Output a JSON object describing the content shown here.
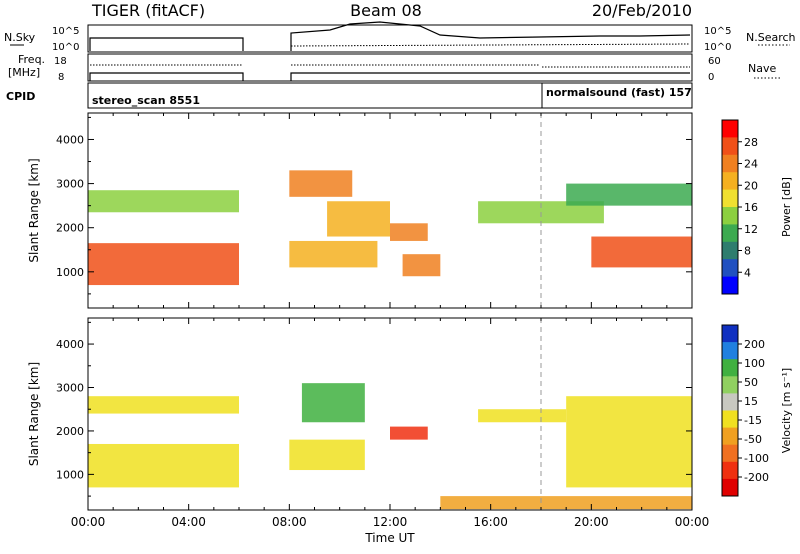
{
  "header": {
    "title": "TIGER (fitACF)",
    "beam": "Beam 08",
    "date": "20/Feb/2010"
  },
  "panels": {
    "nsky_label": "N.Sky",
    "nsearch_label": "N.Search",
    "nsky_ticks": [
      "10^5",
      "10^0"
    ],
    "freq_label_line1": "Freq.",
    "freq_label_line2": "[MHz]",
    "freq_ticks": [
      "18",
      "8"
    ],
    "nave_label": "Nave",
    "nave_ticks": [
      "60",
      "0"
    ],
    "cpid_label": "CPID",
    "cpid_1": "stereo_scan 8551",
    "cpid_2": "normalsound (fast) 157"
  },
  "chart_data": [
    {
      "type": "heatmap",
      "name": "power",
      "ylabel": "Slant Range [km]",
      "xlabel": "",
      "xlim": [
        0,
        24
      ],
      "ylim": [
        180,
        4600
      ],
      "yticks": [
        1000,
        2000,
        3000,
        4000
      ],
      "colorbar": {
        "label": "Power [dB]",
        "ticks": [
          "28",
          "24",
          "20",
          "16",
          "12",
          "8",
          "4"
        ],
        "colors": [
          "#0000ff",
          "#2050c0",
          "#2e7d6e",
          "#3caa50",
          "#8cd040",
          "#f0e030",
          "#f5b020",
          "#f08020",
          "#f05018",
          "#ff0000"
        ]
      },
      "bands": [
        {
          "t0": 0.0,
          "t1": 6.0,
          "r0": 700,
          "r1": 1650,
          "level": 0.85
        },
        {
          "t0": 0.0,
          "t1": 6.0,
          "r0": 2350,
          "r1": 2850,
          "level": 0.4
        },
        {
          "t0": 8.0,
          "t1": 11.5,
          "r0": 1100,
          "r1": 1700,
          "level": 0.7
        },
        {
          "t0": 8.0,
          "t1": 10.5,
          "r0": 2700,
          "r1": 3300,
          "level": 0.75
        },
        {
          "t0": 9.5,
          "t1": 12.0,
          "r0": 1800,
          "r1": 2600,
          "level": 0.7
        },
        {
          "t0": 12.0,
          "t1": 13.5,
          "r0": 1700,
          "r1": 2100,
          "level": 0.8
        },
        {
          "t0": 12.5,
          "t1": 14.0,
          "r0": 900,
          "r1": 1400,
          "level": 0.8
        },
        {
          "t0": 15.5,
          "t1": 20.5,
          "r0": 2100,
          "r1": 2600,
          "level": 0.45
        },
        {
          "t0": 19.0,
          "t1": 24.0,
          "r0": 2500,
          "r1": 3000,
          "level": 0.35
        },
        {
          "t0": 20.0,
          "t1": 24.0,
          "r0": 1100,
          "r1": 1800,
          "level": 0.85
        }
      ]
    },
    {
      "type": "heatmap",
      "name": "velocity",
      "ylabel": "Slant Range [km]",
      "xlabel": "Time UT",
      "xlim": [
        0,
        24
      ],
      "ylim": [
        180,
        4600
      ],
      "xticks": [
        "00:00",
        "04:00",
        "08:00",
        "12:00",
        "16:00",
        "20:00",
        "00:00"
      ],
      "yticks": [
        1000,
        2000,
        3000,
        4000
      ],
      "colorbar": {
        "label": "Velocity [m s⁻¹]",
        "ticks": [
          "200",
          "100",
          "50",
          "15",
          "-15",
          "-50",
          "-100",
          "-200"
        ],
        "colors": [
          "#1030c0",
          "#2080e0",
          "#40b040",
          "#90d060",
          "#c8c8c0",
          "#f0e020",
          "#f0a020",
          "#f07020",
          "#f03010",
          "#e00000"
        ]
      },
      "bands": [
        {
          "t0": 0.0,
          "t1": 6.0,
          "r0": 700,
          "r1": 1700,
          "level": 0.5
        },
        {
          "t0": 0.0,
          "t1": 6.0,
          "r0": 2400,
          "r1": 2800,
          "level": 0.5
        },
        {
          "t0": 8.0,
          "t1": 11.0,
          "r0": 1100,
          "r1": 1800,
          "level": 0.5
        },
        {
          "t0": 8.5,
          "t1": 11.0,
          "r0": 2200,
          "r1": 3100,
          "level": 0.2
        },
        {
          "t0": 12.0,
          "t1": 13.5,
          "r0": 1800,
          "r1": 2100,
          "level": 0.85
        },
        {
          "t0": 15.5,
          "t1": 19.0,
          "r0": 2200,
          "r1": 2500,
          "level": 0.5
        },
        {
          "t0": 19.0,
          "t1": 24.0,
          "r0": 700,
          "r1": 2800,
          "level": 0.5
        },
        {
          "t0": 14.0,
          "t1": 24.0,
          "r0": 200,
          "r1": 500,
          "level": 0.7
        }
      ]
    }
  ]
}
